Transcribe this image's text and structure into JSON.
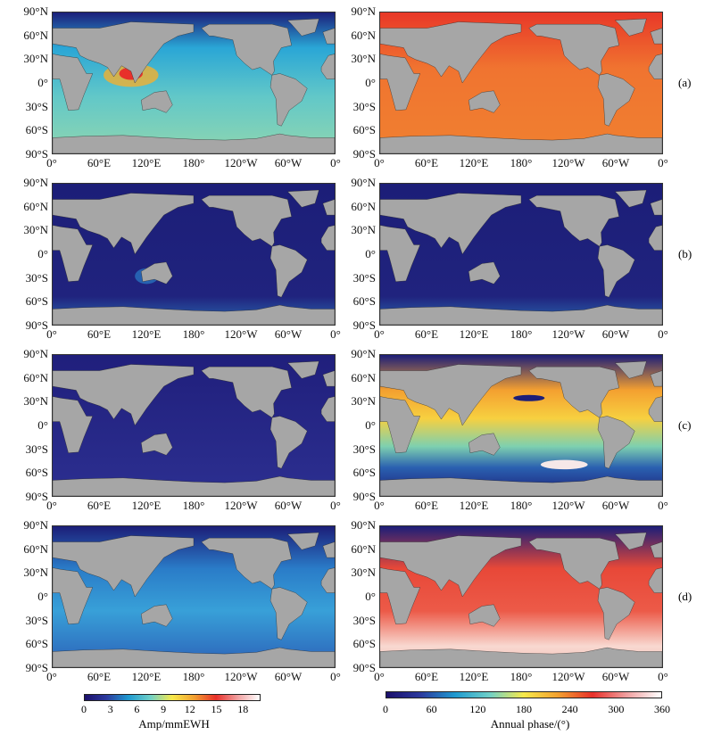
{
  "panels": [
    {
      "label": "(a)",
      "left": "amplitude",
      "right": "annual phase"
    },
    {
      "label": "(b)",
      "left": "amplitude",
      "right": "annual phase"
    },
    {
      "label": "(c)",
      "left": "amplitude",
      "right": "annual phase"
    },
    {
      "label": "(d)",
      "left": "amplitude",
      "right": "annual phase"
    }
  ],
  "axes": {
    "lat_ticks": [
      "90°N",
      "60°N",
      "30°N",
      "0°",
      "30°S",
      "60°S",
      "90°S"
    ],
    "lon_ticks": [
      "0°",
      "60°E",
      "120°E",
      "180°",
      "120°W",
      "60°W",
      "0°"
    ]
  },
  "colorbars": [
    {
      "title": "Amp/mmEWH",
      "ticks": [
        "0",
        "3",
        "6",
        "9",
        "12",
        "15",
        "18"
      ],
      "range": [
        0,
        20
      ]
    },
    {
      "title": "Annual phase/(°)",
      "ticks": [
        "0",
        "60",
        "120",
        "180",
        "240",
        "300",
        "360"
      ],
      "range": [
        0,
        360
      ]
    }
  ],
  "colors": {
    "land": "#a6a6a6",
    "colormap": [
      "#1b0f6b",
      "#2c3a9e",
      "#1f9ad0",
      "#6fd0c8",
      "#f7e94a",
      "#f2a030",
      "#e8302a",
      "#f0a0a0",
      "#ffffff"
    ]
  }
}
